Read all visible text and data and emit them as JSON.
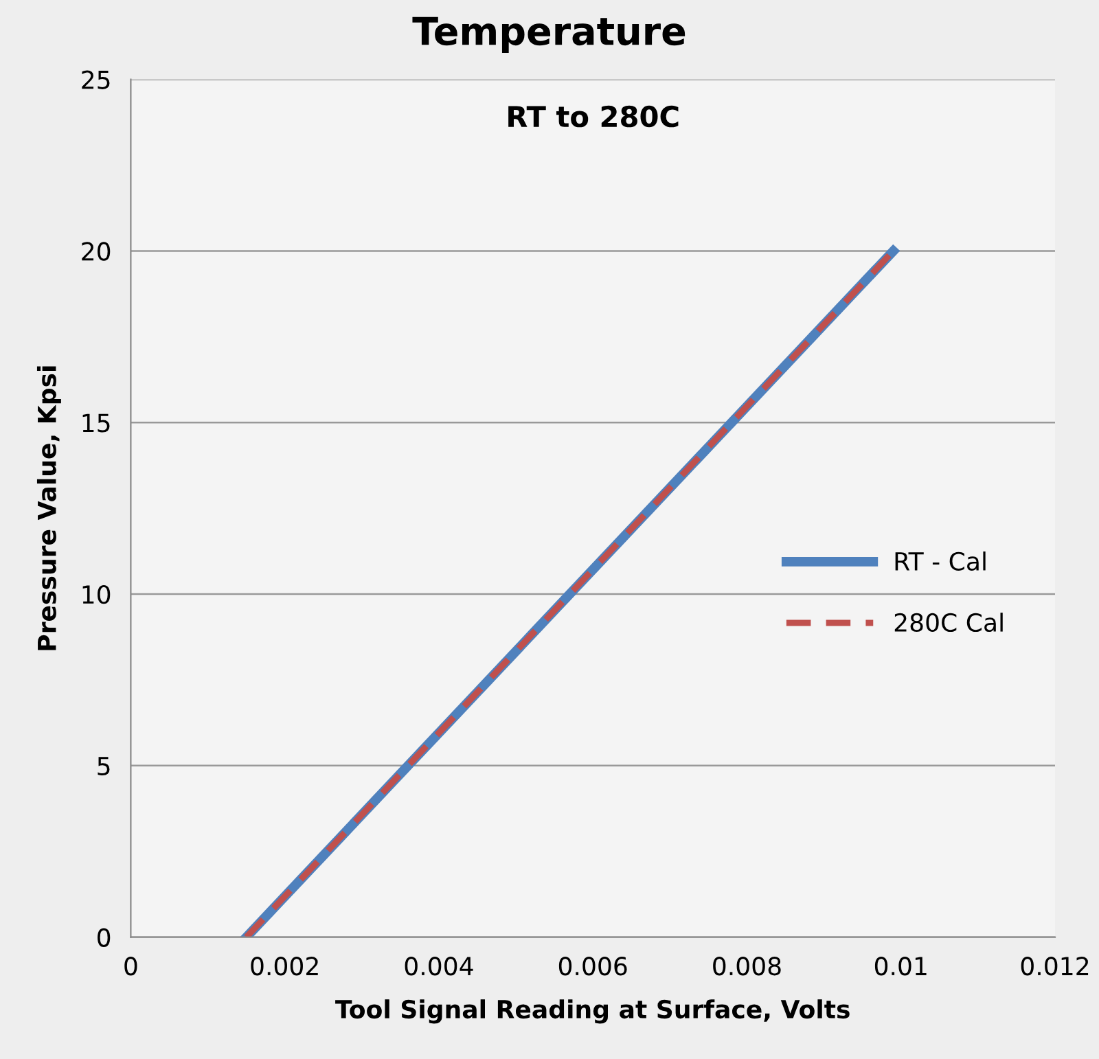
{
  "chart_data": {
    "type": "line",
    "title": "Temperature",
    "subtitle": "RT to 280C",
    "xlabel": "Tool Signal Reading at Surface, Volts",
    "ylabel": "Pressure Value, Kpsi",
    "series": [
      {
        "name": "RT - Cal",
        "color": "#4f81bd",
        "values": [
          0,
          20
        ],
        "line_style": "solid"
      },
      {
        "name": "280C Cal",
        "color": "#c0504d",
        "values": [
          0,
          20
        ],
        "line_style": "dashed"
      }
    ],
    "x": [
      0.0015,
      0.0099
    ],
    "xlim": [
      0,
      0.012
    ],
    "xticks": [
      0,
      {
        "value": 0.002,
        "label": "0.002"
      },
      {
        "value": 0.004,
        "label": "0.004"
      },
      {
        "value": 0.006,
        "label": "0.006"
      },
      {
        "value": 0.008,
        "label": "0.008"
      },
      {
        "value": 0.01,
        "label": "0.01"
      },
      {
        "value": 0.012,
        "label": "0.012"
      }
    ],
    "ylim": [
      0,
      25
    ],
    "yticks": [
      0,
      5,
      10,
      15,
      20,
      25
    ],
    "grid": "y",
    "legend": "right",
    "marker": "none"
  }
}
